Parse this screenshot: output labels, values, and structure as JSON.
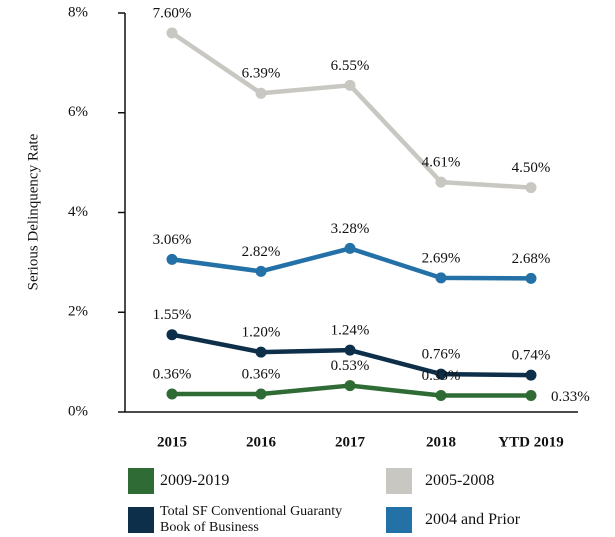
{
  "chart_data": {
    "type": "line",
    "y_label": "Serious Delinquency Rate",
    "categories": [
      "2015",
      "2016",
      "2017",
      "2018",
      "YTD 2019"
    ],
    "series": [
      {
        "name": "2005-2008",
        "color": "#c9c7c1",
        "values": [
          7.6,
          6.39,
          6.55,
          4.61,
          4.5
        ],
        "value_labels": [
          "7.60%",
          "6.39%",
          "6.55%",
          "4.61%",
          "4.50%"
        ]
      },
      {
        "name": "2004 and Prior",
        "color": "#2471a8",
        "values": [
          3.06,
          2.82,
          3.28,
          2.69,
          2.68
        ],
        "value_labels": [
          "3.06%",
          "2.82%",
          "3.28%",
          "2.69%",
          "2.68%"
        ]
      },
      {
        "name": "Total SF Conventional Guaranty Book of Business",
        "color": "#0d2f4a",
        "values": [
          1.55,
          1.2,
          1.24,
          0.76,
          0.74
        ],
        "value_labels": [
          "1.55%",
          "1.20%",
          "1.24%",
          "0.76%",
          "0.74%"
        ]
      },
      {
        "name": "2009-2019",
        "color": "#2f6b35",
        "values": [
          0.36,
          0.36,
          0.53,
          0.33,
          0.33
        ],
        "value_labels": [
          "0.36%",
          "0.36%",
          "0.53%",
          "0.33%",
          "0.33%"
        ]
      }
    ],
    "ylim": [
      0,
      8
    ],
    "yticks": [
      {
        "value": 0,
        "label": "0%"
      },
      {
        "value": 2,
        "label": "2%"
      },
      {
        "value": 4,
        "label": "4%"
      },
      {
        "value": 6,
        "label": "6%"
      },
      {
        "value": 8,
        "label": "8%"
      }
    ],
    "grid": false
  }
}
